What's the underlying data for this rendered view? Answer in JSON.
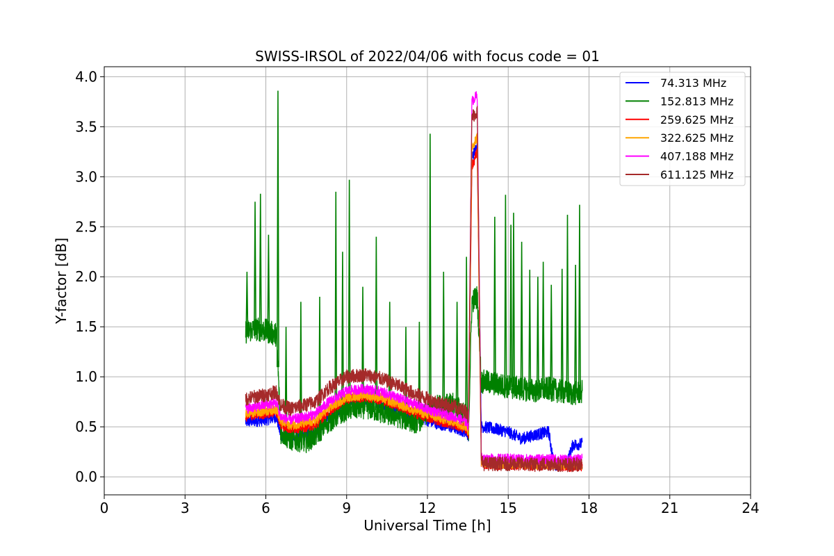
{
  "chart_data": {
    "type": "line",
    "title": "SWISS-IRSOL of 2022/04/06 with focus code = 01",
    "xlabel": "Universal Time [h]",
    "ylabel": "Y-factor [dB]",
    "xlim": [
      0,
      24
    ],
    "ylim": [
      -0.18,
      4.1
    ],
    "x_ticks": [
      0,
      3,
      6,
      9,
      12,
      15,
      18,
      21,
      24
    ],
    "y_ticks": [
      0.0,
      0.5,
      1.0,
      1.5,
      2.0,
      2.5,
      3.0,
      3.5,
      4.0
    ],
    "x_tick_labels": [
      "0",
      "3",
      "6",
      "9",
      "12",
      "15",
      "18",
      "21",
      "24"
    ],
    "y_tick_labels": [
      "0.0",
      "0.5",
      "1.0",
      "1.5",
      "2.0",
      "2.5",
      "3.0",
      "3.5",
      "4.0"
    ],
    "grid": true,
    "legend_position": "top-right",
    "series": [
      {
        "name": "74.313 MHz",
        "color": "#0000ff",
        "x": [
          5.25,
          5.6,
          6.0,
          6.4,
          6.55,
          6.9,
          7.5,
          7.85,
          8.3,
          9.0,
          9.7,
          10.3,
          11.0,
          11.6,
          12.3,
          13.0,
          13.45,
          13.52,
          13.65,
          13.85,
          14.0,
          14.1,
          14.5,
          15.0,
          15.5,
          16.0,
          16.5,
          16.7,
          17.2,
          17.4,
          17.75
        ],
        "y": [
          0.55,
          0.56,
          0.57,
          0.6,
          0.42,
          0.4,
          0.42,
          0.45,
          0.58,
          0.75,
          0.78,
          0.74,
          0.66,
          0.6,
          0.54,
          0.49,
          0.45,
          0.4,
          3.2,
          3.3,
          0.5,
          0.5,
          0.48,
          0.45,
          0.38,
          0.42,
          0.45,
          0.12,
          0.15,
          0.32,
          0.33
        ]
      },
      {
        "name": "152.813 MHz",
        "color": "#008000",
        "x": [
          5.25,
          5.6,
          6.0,
          6.4,
          6.55,
          6.9,
          7.5,
          7.85,
          8.3,
          9.0,
          9.7,
          10.3,
          11.0,
          11.6,
          12.3,
          13.0,
          13.45,
          13.52,
          13.65,
          13.85,
          14.0,
          14.1,
          14.5,
          15.0,
          15.5,
          16.0,
          16.5,
          17.0,
          17.4,
          17.75
        ],
        "y": [
          1.45,
          1.48,
          1.46,
          1.42,
          0.45,
          0.38,
          0.36,
          0.42,
          0.55,
          0.68,
          0.7,
          0.65,
          0.6,
          0.55,
          0.7,
          0.72,
          0.6,
          0.4,
          1.75,
          1.8,
          0.95,
          0.95,
          0.93,
          0.9,
          0.88,
          0.86,
          0.88,
          0.85,
          0.83,
          0.85
        ],
        "spikes": [
          {
            "x": 5.3,
            "y": 2.05
          },
          {
            "x": 5.6,
            "y": 2.75
          },
          {
            "x": 5.8,
            "y": 2.83
          },
          {
            "x": 6.1,
            "y": 2.42
          },
          {
            "x": 6.45,
            "y": 3.86
          },
          {
            "x": 6.75,
            "y": 1.5
          },
          {
            "x": 7.3,
            "y": 1.75
          },
          {
            "x": 8.0,
            "y": 1.8
          },
          {
            "x": 8.6,
            "y": 2.85
          },
          {
            "x": 8.85,
            "y": 2.25
          },
          {
            "x": 9.1,
            "y": 2.97
          },
          {
            "x": 9.6,
            "y": 1.9
          },
          {
            "x": 10.1,
            "y": 2.4
          },
          {
            "x": 10.6,
            "y": 1.75
          },
          {
            "x": 11.2,
            "y": 1.5
          },
          {
            "x": 11.7,
            "y": 1.55
          },
          {
            "x": 12.1,
            "y": 3.43
          },
          {
            "x": 12.6,
            "y": 2.05
          },
          {
            "x": 13.1,
            "y": 1.75
          },
          {
            "x": 13.45,
            "y": 2.2
          },
          {
            "x": 14.5,
            "y": 2.6
          },
          {
            "x": 14.9,
            "y": 2.82
          },
          {
            "x": 15.1,
            "y": 2.52
          },
          {
            "x": 15.2,
            "y": 2.64
          },
          {
            "x": 15.5,
            "y": 2.35
          },
          {
            "x": 15.8,
            "y": 2.07
          },
          {
            "x": 16.1,
            "y": 2.0
          },
          {
            "x": 16.3,
            "y": 2.15
          },
          {
            "x": 16.6,
            "y": 1.92
          },
          {
            "x": 17.0,
            "y": 2.08
          },
          {
            "x": 17.2,
            "y": 2.62
          },
          {
            "x": 17.5,
            "y": 2.12
          },
          {
            "x": 17.65,
            "y": 2.72
          }
        ]
      },
      {
        "name": "259.625 MHz",
        "color": "#ff0000",
        "x": [
          5.25,
          5.6,
          6.0,
          6.4,
          6.55,
          6.9,
          7.5,
          7.85,
          8.3,
          9.0,
          9.7,
          10.3,
          11.0,
          11.6,
          12.3,
          13.0,
          13.45,
          13.52,
          13.65,
          13.85,
          14.0,
          14.1,
          14.5,
          15.0,
          15.5,
          16.0,
          16.5,
          17.0,
          17.4,
          17.75
        ],
        "y": [
          0.6,
          0.62,
          0.63,
          0.65,
          0.52,
          0.48,
          0.5,
          0.52,
          0.65,
          0.78,
          0.8,
          0.77,
          0.7,
          0.63,
          0.57,
          0.52,
          0.48,
          0.42,
          3.1,
          3.25,
          0.15,
          0.13,
          0.12,
          0.12,
          0.12,
          0.11,
          0.12,
          0.11,
          0.1,
          0.11
        ]
      },
      {
        "name": "322.625 MHz",
        "color": "#ffa500",
        "x": [
          5.25,
          5.6,
          6.0,
          6.4,
          6.55,
          6.9,
          7.5,
          7.85,
          8.3,
          9.0,
          9.7,
          10.3,
          11.0,
          11.6,
          12.3,
          13.0,
          13.45,
          13.52,
          13.65,
          13.85,
          14.0,
          14.1,
          14.5,
          15.0,
          15.5,
          16.0,
          16.5,
          17.0,
          17.4,
          17.75
        ],
        "y": [
          0.63,
          0.65,
          0.66,
          0.68,
          0.55,
          0.52,
          0.54,
          0.56,
          0.68,
          0.8,
          0.82,
          0.79,
          0.72,
          0.66,
          0.6,
          0.55,
          0.5,
          0.45,
          3.3,
          3.4,
          0.16,
          0.14,
          0.13,
          0.13,
          0.13,
          0.12,
          0.13,
          0.12,
          0.12,
          0.12
        ]
      },
      {
        "name": "407.188 MHz",
        "color": "#ff00ff",
        "x": [
          5.25,
          5.6,
          6.0,
          6.4,
          6.55,
          6.9,
          7.5,
          7.85,
          8.3,
          9.0,
          9.7,
          10.3,
          11.0,
          11.6,
          12.3,
          13.0,
          13.45,
          13.52,
          13.65,
          13.85,
          14.0,
          14.1,
          14.5,
          15.0,
          15.5,
          16.0,
          16.5,
          17.0,
          17.4,
          17.75
        ],
        "y": [
          0.68,
          0.7,
          0.72,
          0.74,
          0.6,
          0.57,
          0.6,
          0.63,
          0.74,
          0.86,
          0.88,
          0.85,
          0.78,
          0.72,
          0.65,
          0.6,
          0.55,
          0.5,
          3.75,
          3.82,
          0.2,
          0.18,
          0.18,
          0.18,
          0.18,
          0.17,
          0.18,
          0.17,
          0.17,
          0.18
        ]
      },
      {
        "name": "611.125 MHz",
        "color": "#a52a2a",
        "x": [
          5.25,
          5.6,
          6.0,
          6.4,
          6.55,
          6.9,
          7.5,
          7.85,
          8.3,
          9.0,
          9.7,
          10.3,
          11.0,
          11.6,
          12.3,
          13.0,
          13.45,
          13.52,
          13.65,
          13.85,
          14.0,
          14.1,
          14.5,
          15.0,
          15.5,
          16.0,
          16.5,
          17.0,
          17.4,
          17.75
        ],
        "y": [
          0.78,
          0.8,
          0.82,
          0.85,
          0.72,
          0.68,
          0.72,
          0.75,
          0.88,
          1.0,
          1.02,
          0.98,
          0.9,
          0.82,
          0.75,
          0.7,
          0.65,
          0.6,
          3.6,
          3.65,
          0.15,
          0.13,
          0.13,
          0.13,
          0.13,
          0.12,
          0.13,
          0.12,
          0.12,
          0.13
        ]
      }
    ]
  }
}
